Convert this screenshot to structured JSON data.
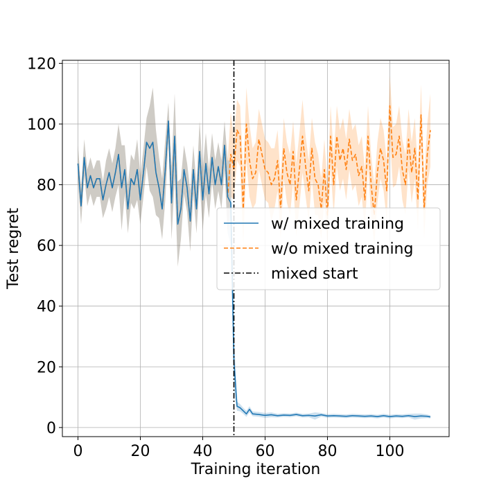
{
  "chart_data": {
    "type": "line",
    "title": "",
    "xlabel": "Training iteration",
    "ylabel": "Test regret",
    "xlim": [
      -5,
      119
    ],
    "ylim": [
      -3,
      121
    ],
    "xticks": [
      0,
      20,
      40,
      60,
      80,
      100
    ],
    "yticks": [
      0,
      20,
      40,
      60,
      80,
      100,
      120
    ],
    "grid": true,
    "legend_placement": "center-right",
    "mixed_start": 50,
    "series": [
      {
        "name": "w/ mixed training",
        "color": "#1f77b4",
        "style": "solid",
        "x": [
          0,
          1,
          2,
          3,
          4,
          5,
          6,
          7,
          8,
          9,
          10,
          11,
          12,
          13,
          14,
          15,
          16,
          17,
          18,
          19,
          20,
          21,
          22,
          23,
          24,
          25,
          26,
          27,
          28,
          29,
          30,
          31,
          32,
          33,
          34,
          35,
          36,
          37,
          38,
          39,
          40,
          41,
          42,
          43,
          44,
          45,
          46,
          47,
          48,
          49,
          50,
          51,
          52,
          53,
          54,
          55,
          56,
          58,
          60,
          62,
          64,
          66,
          68,
          70,
          72,
          74,
          76,
          78,
          80,
          82,
          84,
          86,
          88,
          90,
          92,
          94,
          96,
          98,
          100,
          102,
          104,
          106,
          108,
          110,
          112,
          113
        ],
        "values": [
          87,
          73,
          89,
          79,
          83,
          79,
          82,
          82,
          75,
          80,
          84,
          79,
          84,
          90,
          79,
          85,
          72,
          82,
          80,
          85,
          75,
          84,
          94,
          92,
          94,
          84,
          79,
          72,
          85,
          101,
          74,
          96,
          67,
          72,
          85,
          79,
          68,
          85,
          72,
          91,
          75,
          87,
          77,
          89,
          80,
          86,
          80,
          93,
          76,
          74,
          22,
          7,
          6.5,
          5.5,
          4.5,
          6,
          4.5,
          4.3,
          4.0,
          4.2,
          3.9,
          4.1,
          4.0,
          4.3,
          3.9,
          4.0,
          3.8,
          4.2,
          3.8,
          3.9,
          3.8,
          3.7,
          3.9,
          3.8,
          3.7,
          3.8,
          3.6,
          3.9,
          3.6,
          3.8,
          3.7,
          3.9,
          3.6,
          3.8,
          3.7,
          3.5
        ],
        "band": [
          6,
          6,
          6,
          6,
          6,
          6,
          6,
          6,
          6,
          8,
          8,
          8,
          8,
          10,
          14,
          8,
          8,
          8,
          8,
          10,
          8,
          8,
          8,
          14,
          18,
          14,
          10,
          10,
          10,
          6,
          12,
          14,
          14,
          10,
          8,
          8,
          10,
          8,
          8,
          10,
          10,
          10,
          8,
          8,
          8,
          8,
          8,
          8,
          12,
          14,
          10,
          1.5,
          1.2,
          1,
          1,
          1,
          0.8,
          0.8,
          0.8,
          0.8,
          0.6,
          0.6,
          0.6,
          0.6,
          0.6,
          0.6,
          1.2,
          0.6,
          0.6,
          0.6,
          0.6,
          0.6,
          0.6,
          0.6,
          0.6,
          0.6,
          0.6,
          0.6,
          0.6,
          0.6,
          0.6,
          0.6,
          1,
          0.8,
          0.6,
          0.5
        ]
      },
      {
        "name": "w/o mixed training",
        "color": "#ff7f0e",
        "style": "dashed",
        "x": [
          0,
          1,
          2,
          3,
          4,
          5,
          6,
          7,
          8,
          9,
          10,
          11,
          12,
          13,
          14,
          15,
          16,
          17,
          18,
          19,
          20,
          21,
          22,
          23,
          24,
          25,
          26,
          27,
          28,
          29,
          30,
          31,
          32,
          33,
          34,
          35,
          36,
          37,
          38,
          39,
          40,
          41,
          42,
          43,
          44,
          45,
          46,
          47,
          48,
          49,
          50,
          51,
          52,
          53,
          54,
          55,
          56,
          57,
          58,
          59,
          60,
          61,
          62,
          63,
          64,
          65,
          66,
          67,
          68,
          69,
          70,
          71,
          72,
          73,
          74,
          75,
          76,
          77,
          78,
          79,
          80,
          81,
          82,
          83,
          84,
          85,
          86,
          87,
          88,
          89,
          90,
          91,
          92,
          93,
          94,
          95,
          96,
          97,
          98,
          99,
          100,
          101,
          102,
          103,
          104,
          105,
          106,
          107,
          108,
          109,
          110,
          111,
          112,
          113
        ],
        "values": [
          87,
          73,
          89,
          79,
          83,
          79,
          82,
          82,
          75,
          80,
          84,
          79,
          84,
          90,
          79,
          85,
          72,
          82,
          80,
          85,
          75,
          84,
          94,
          92,
          94,
          84,
          79,
          72,
          85,
          101,
          74,
          96,
          67,
          72,
          85,
          79,
          68,
          85,
          72,
          91,
          75,
          87,
          77,
          89,
          80,
          86,
          80,
          93,
          76,
          90,
          85,
          98,
          96,
          72,
          100,
          88,
          82,
          84,
          95,
          90,
          85,
          84,
          80,
          82,
          88,
          72,
          92,
          84,
          80,
          91,
          75,
          85,
          96,
          86,
          78,
          92,
          82,
          80,
          72,
          85,
          70,
          96,
          80,
          96,
          88,
          92,
          85,
          95,
          88,
          90,
          83,
          86,
          75,
          96,
          80,
          70,
          84,
          92,
          88,
          78,
          106,
          89,
          90,
          96,
          85,
          80,
          95,
          84,
          92,
          75,
          103,
          72,
          90,
          98
        ],
        "band": [
          6,
          6,
          6,
          6,
          6,
          6,
          6,
          6,
          6,
          8,
          8,
          8,
          8,
          10,
          14,
          8,
          8,
          8,
          8,
          10,
          8,
          8,
          8,
          14,
          18,
          14,
          10,
          10,
          10,
          6,
          12,
          14,
          14,
          10,
          8,
          8,
          10,
          8,
          8,
          10,
          10,
          10,
          8,
          8,
          8,
          8,
          8,
          8,
          12,
          14,
          10,
          10,
          10,
          12,
          12,
          12,
          10,
          10,
          10,
          10,
          10,
          10,
          12,
          10,
          10,
          10,
          10,
          10,
          10,
          10,
          12,
          12,
          12,
          10,
          10,
          10,
          12,
          10,
          10,
          10,
          10,
          10,
          10,
          10,
          10,
          10,
          10,
          10,
          10,
          10,
          10,
          10,
          10,
          10,
          10,
          10,
          10,
          10,
          10,
          10,
          10,
          10,
          10,
          10,
          10,
          10,
          10,
          10,
          10,
          10,
          10,
          10,
          10,
          12
        ]
      }
    ],
    "vline": {
      "name": "mixed start",
      "color": "#000000",
      "style": "dashdot"
    }
  }
}
